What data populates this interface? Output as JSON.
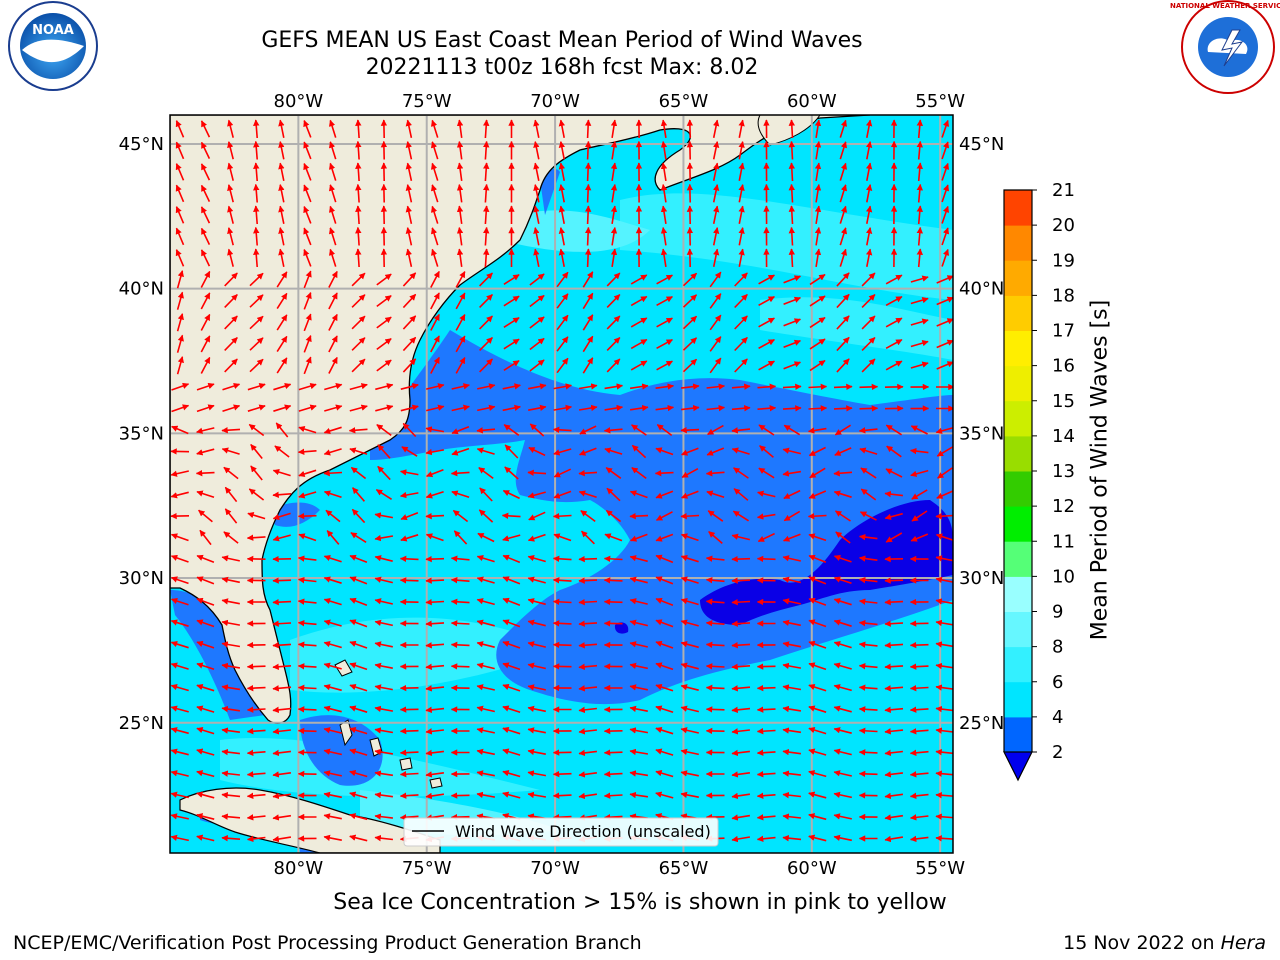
{
  "title": {
    "line1": "GEFS MEAN US East Coast Mean Period of Wind Waves",
    "line2": "20221113 t00z 168h fcst   Max: 8.02"
  },
  "map": {
    "lon_range": [
      -85,
      -54.5
    ],
    "lat_range": [
      20.5,
      46
    ],
    "lon_ticks": [
      "80°W",
      "75°W",
      "70°W",
      "65°W",
      "60°W",
      "55°W"
    ],
    "lat_ticks": [
      "45°N",
      "40°N",
      "35°N",
      "30°N",
      "25°N"
    ],
    "land_color": "#efecdc",
    "grid_color": "#b0b0b0",
    "arrow_color": "#ff0000"
  },
  "legend": {
    "label": "Wind Wave Direction (unscaled)"
  },
  "colorbar": {
    "label": "Mean Period of Wind Waves [s]",
    "ticks": [
      "2",
      "4",
      "6",
      "8",
      "9",
      "10",
      "11",
      "12",
      "13",
      "14",
      "15",
      "16",
      "17",
      "18",
      "19",
      "20",
      "21"
    ],
    "colors": [
      "#0066ff",
      "#00e5ff",
      "#33f0ff",
      "#66f7ff",
      "#99ffff",
      "#55ff77",
      "#00ee00",
      "#33cc00",
      "#99dd00",
      "#ccee00",
      "#eeee00",
      "#ffee00",
      "#ffcc00",
      "#ffaa00",
      "#ff8800",
      "#ff4400",
      "#ff0000"
    ],
    "under_color": "#0000ee"
  },
  "ice_note": "Sea Ice Concentration > 15% is shown in pink to yellow",
  "footer": {
    "left": "NCEP/EMC/Verification Post Processing Product Generation Branch",
    "right_date": "15 Nov 2022 on ",
    "right_host": "Hera"
  },
  "logos": {
    "noaa": "NOAA",
    "nws": "NATIONAL WEATHER SERVICE"
  }
}
